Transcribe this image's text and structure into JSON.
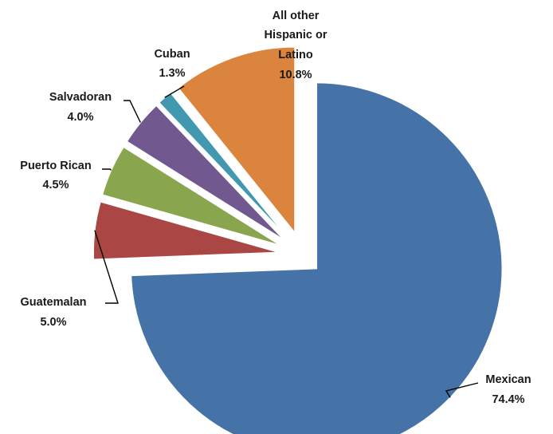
{
  "chart_data": {
    "type": "pie",
    "title": "",
    "exploded": true,
    "slices": [
      {
        "label": "Mexican",
        "value": 74.4,
        "value_label": "74.4%",
        "color": "#4572A7"
      },
      {
        "label": "Guatemalan",
        "value": 5.0,
        "value_label": "5.0%",
        "color": "#AA4643"
      },
      {
        "label": "Puerto Rican",
        "value": 4.5,
        "value_label": "4.5%",
        "color": "#89A54E"
      },
      {
        "label": "Salvadoran",
        "value": 4.0,
        "value_label": "4.0%",
        "color": "#71588F"
      },
      {
        "label": "Cuban",
        "value": 1.3,
        "value_label": "1.3%",
        "color": "#4198AF"
      },
      {
        "label": "All other Hispanic or Latino",
        "value": 10.8,
        "value_label": "10.8%",
        "color": "#DB843D"
      }
    ]
  }
}
